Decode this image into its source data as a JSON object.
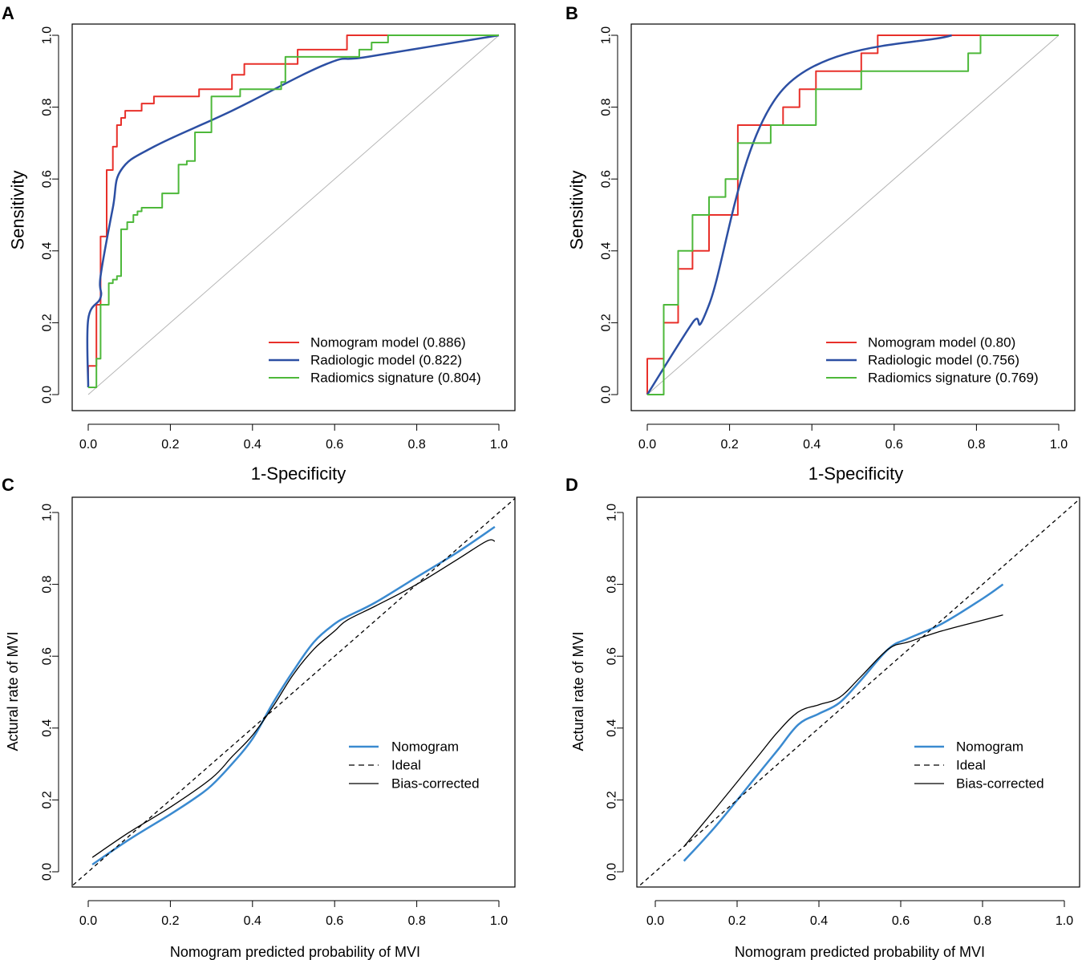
{
  "figure": {
    "width": 1349,
    "height": 1197
  },
  "colors": {
    "nomogram_roc": "#e8302a",
    "radiologic": "#2c4fa3",
    "radiomics": "#4db83a",
    "reference": "#b4b4b4",
    "nomogram_cal": "#3a8ad0",
    "ideal": "#000000",
    "bias_corrected": "#000000"
  },
  "chart_data": [
    {
      "id": "A",
      "type": "line",
      "panel_letter": "A",
      "xlabel": "1-Specificity",
      "ylabel": "Sensitivity",
      "xlim": [
        0,
        1
      ],
      "ylim": [
        0,
        1
      ],
      "xticks": [
        "0.0",
        "0.2",
        "0.4",
        "0.6",
        "0.8",
        "1.0"
      ],
      "yticks": [
        "0.0",
        "0.2",
        "0.4",
        "0.6",
        "0.8",
        "1.0"
      ],
      "legend_position": "bottom-right",
      "diagonal": true,
      "series": [
        {
          "name": "Nomogram model (0.886)",
          "color": "#e8302a",
          "style": "solid",
          "width": 2,
          "x": [
            0,
            0,
            0.02,
            0.02,
            0.03,
            0.03,
            0.045,
            0.045,
            0.06,
            0.06,
            0.07,
            0.07,
            0.08,
            0.08,
            0.09,
            0.09,
            0.11,
            0.11,
            0.13,
            0.13,
            0.16,
            0.16,
            0.27,
            0.27,
            0.35,
            0.35,
            0.38,
            0.38,
            0.51,
            0.51,
            0.63,
            0.63,
            1.0
          ],
          "y": [
            0.02,
            0.08,
            0.08,
            0.25,
            0.25,
            0.44,
            0.44,
            0.625,
            0.625,
            0.69,
            0.69,
            0.75,
            0.75,
            0.77,
            0.77,
            0.79,
            0.79,
            0.79,
            0.79,
            0.81,
            0.81,
            0.83,
            0.83,
            0.85,
            0.85,
            0.89,
            0.89,
            0.92,
            0.92,
            0.96,
            0.96,
            1.0,
            1.0
          ]
        },
        {
          "name": "Radiologic model (0.822)",
          "color": "#2c4fa3",
          "style": "solid",
          "width": 2.5,
          "x": [
            0,
            0,
            0.03,
            0.03,
            0.06,
            0.08,
            0.16,
            0.35,
            0.58,
            0.68,
            1.0
          ],
          "y": [
            0.02,
            0.21,
            0.27,
            0.33,
            0.52,
            0.625,
            0.69,
            0.79,
            0.92,
            0.94,
            1.0
          ],
          "smooth": true
        },
        {
          "name": "Radiomics signature (0.804)",
          "color": "#4db83a",
          "style": "solid",
          "width": 2,
          "x": [
            0,
            0,
            0.02,
            0.02,
            0.03,
            0.03,
            0.05,
            0.05,
            0.06,
            0.06,
            0.07,
            0.07,
            0.08,
            0.08,
            0.095,
            0.095,
            0.11,
            0.11,
            0.12,
            0.12,
            0.13,
            0.13,
            0.18,
            0.18,
            0.19,
            0.19,
            0.22,
            0.22,
            0.24,
            0.24,
            0.26,
            0.26,
            0.3,
            0.3,
            0.37,
            0.37,
            0.47,
            0.47,
            0.48,
            0.48,
            0.66,
            0.66,
            0.69,
            0.69,
            0.73,
            0.73,
            1.0
          ],
          "y": [
            0.02,
            0.02,
            0.02,
            0.1,
            0.1,
            0.25,
            0.25,
            0.31,
            0.31,
            0.32,
            0.32,
            0.33,
            0.33,
            0.46,
            0.46,
            0.48,
            0.48,
            0.5,
            0.5,
            0.51,
            0.51,
            0.52,
            0.52,
            0.56,
            0.56,
            0.56,
            0.56,
            0.64,
            0.64,
            0.65,
            0.65,
            0.73,
            0.73,
            0.83,
            0.83,
            0.85,
            0.85,
            0.87,
            0.87,
            0.94,
            0.94,
            0.96,
            0.96,
            0.98,
            0.98,
            1.0,
            1.0
          ]
        }
      ]
    },
    {
      "id": "B",
      "type": "line",
      "panel_letter": "B",
      "xlabel": "1-Specificity",
      "ylabel": "Sensitivity",
      "xlim": [
        0,
        1
      ],
      "ylim": [
        0,
        1
      ],
      "xticks": [
        "0.0",
        "0.2",
        "0.4",
        "0.6",
        "0.8",
        "1.0"
      ],
      "yticks": [
        "0.0",
        "0.2",
        "0.4",
        "0.6",
        "0.8",
        "1.0"
      ],
      "legend_position": "bottom-right",
      "diagonal": true,
      "series": [
        {
          "name": "Nomogram model (0.80)",
          "color": "#e8302a",
          "style": "solid",
          "width": 2,
          "x": [
            0,
            0,
            0.04,
            0.04,
            0.075,
            0.075,
            0.11,
            0.11,
            0.15,
            0.15,
            0.22,
            0.22,
            0.33,
            0.33,
            0.37,
            0.37,
            0.41,
            0.41,
            0.52,
            0.52,
            0.56,
            0.56,
            1.0
          ],
          "y": [
            0,
            0.1,
            0.1,
            0.2,
            0.2,
            0.35,
            0.35,
            0.4,
            0.4,
            0.5,
            0.5,
            0.75,
            0.75,
            0.8,
            0.8,
            0.85,
            0.85,
            0.9,
            0.9,
            0.95,
            0.95,
            1.0,
            1.0
          ]
        },
        {
          "name": "Radiologic model (0.756)",
          "color": "#2c4fa3",
          "style": "solid",
          "width": 2.5,
          "x": [
            0,
            0.11,
            0.15,
            0.33,
            0.74
          ],
          "y": [
            0,
            0.2,
            0.25,
            0.85,
            1.0
          ],
          "smooth": true
        },
        {
          "name": "Radiomics signature (0.769)",
          "color": "#4db83a",
          "style": "solid",
          "width": 2,
          "x": [
            0,
            0.04,
            0.04,
            0.075,
            0.075,
            0.11,
            0.11,
            0.15,
            0.15,
            0.19,
            0.19,
            0.22,
            0.22,
            0.3,
            0.3,
            0.41,
            0.41,
            0.52,
            0.52,
            0.78,
            0.78,
            0.81,
            0.81,
            1.0
          ],
          "y": [
            0,
            0,
            0.25,
            0.25,
            0.4,
            0.4,
            0.5,
            0.5,
            0.55,
            0.55,
            0.6,
            0.6,
            0.7,
            0.7,
            0.75,
            0.75,
            0.85,
            0.85,
            0.9,
            0.9,
            0.95,
            0.95,
            1.0,
            1.0
          ]
        }
      ]
    },
    {
      "id": "C",
      "type": "line",
      "panel_letter": "C",
      "xlabel": "Nomogram predicted probability of MVI",
      "ylabel": "Actural rate of MVI",
      "xlim": [
        0,
        1
      ],
      "ylim": [
        0,
        1
      ],
      "xticks": [
        "0.0",
        "0.2",
        "0.4",
        "0.6",
        "0.8",
        "1.0"
      ],
      "yticks": [
        "0.0",
        "0.2",
        "0.4",
        "0.6",
        "0.8",
        "1.0"
      ],
      "legend_position": "bottom-right",
      "series": [
        {
          "name": "Nomogram",
          "color": "#3a8ad0",
          "style": "solid",
          "width": 2.5,
          "smooth": true,
          "x": [
            0.01,
            0.1,
            0.2,
            0.26,
            0.3,
            0.35,
            0.4,
            0.45,
            0.5,
            0.55,
            0.6,
            0.63,
            0.7,
            0.8,
            0.9,
            0.99
          ],
          "y": [
            0.02,
            0.09,
            0.16,
            0.205,
            0.24,
            0.3,
            0.37,
            0.47,
            0.56,
            0.64,
            0.69,
            0.71,
            0.75,
            0.82,
            0.89,
            0.96
          ]
        },
        {
          "name": "Ideal",
          "color": "#000000",
          "style": "dashed",
          "width": 1.3,
          "x": [
            -0.05,
            1.05
          ],
          "y": [
            -0.05,
            1.05
          ]
        },
        {
          "name": "Bias-corrected",
          "color": "#000000",
          "style": "solid",
          "width": 1.3,
          "smooth": true,
          "x": [
            0.01,
            0.1,
            0.2,
            0.3,
            0.35,
            0.4,
            0.45,
            0.5,
            0.55,
            0.6,
            0.63,
            0.7,
            0.8,
            0.9,
            0.97,
            0.99
          ],
          "y": [
            0.04,
            0.11,
            0.18,
            0.26,
            0.32,
            0.38,
            0.46,
            0.55,
            0.62,
            0.67,
            0.7,
            0.74,
            0.8,
            0.87,
            0.92,
            0.92
          ]
        }
      ]
    },
    {
      "id": "D",
      "type": "line",
      "panel_letter": "D",
      "xlabel": "Nomogram predicted probability of MVI",
      "ylabel": "Actural rate of MVI",
      "xlim": [
        0,
        1
      ],
      "ylim": [
        0,
        1
      ],
      "xticks": [
        "0.0",
        "0.2",
        "0.4",
        "0.6",
        "0.8",
        "1.0"
      ],
      "yticks": [
        "0.0",
        "0.2",
        "0.4",
        "0.6",
        "0.8",
        "1.0"
      ],
      "legend_position": "bottom-right",
      "series": [
        {
          "name": "Nomogram",
          "color": "#3a8ad0",
          "style": "solid",
          "width": 2.5,
          "smooth": true,
          "x": [
            0.07,
            0.15,
            0.25,
            0.3,
            0.35,
            0.4,
            0.45,
            0.5,
            0.57,
            0.62,
            0.7,
            0.8,
            0.85
          ],
          "y": [
            0.03,
            0.13,
            0.27,
            0.34,
            0.41,
            0.44,
            0.47,
            0.53,
            0.62,
            0.65,
            0.69,
            0.76,
            0.8
          ]
        },
        {
          "name": "Ideal",
          "color": "#000000",
          "style": "dashed",
          "width": 1.3,
          "x": [
            -0.05,
            1.05
          ],
          "y": [
            -0.05,
            1.05
          ]
        },
        {
          "name": "Bias-corrected",
          "color": "#000000",
          "style": "solid",
          "width": 1.3,
          "smooth": true,
          "x": [
            0.07,
            0.15,
            0.25,
            0.3,
            0.35,
            0.4,
            0.45,
            0.5,
            0.57,
            0.62,
            0.7,
            0.8,
            0.85
          ],
          "y": [
            0.07,
            0.18,
            0.32,
            0.39,
            0.445,
            0.465,
            0.485,
            0.54,
            0.62,
            0.64,
            0.67,
            0.7,
            0.715
          ]
        }
      ]
    }
  ]
}
